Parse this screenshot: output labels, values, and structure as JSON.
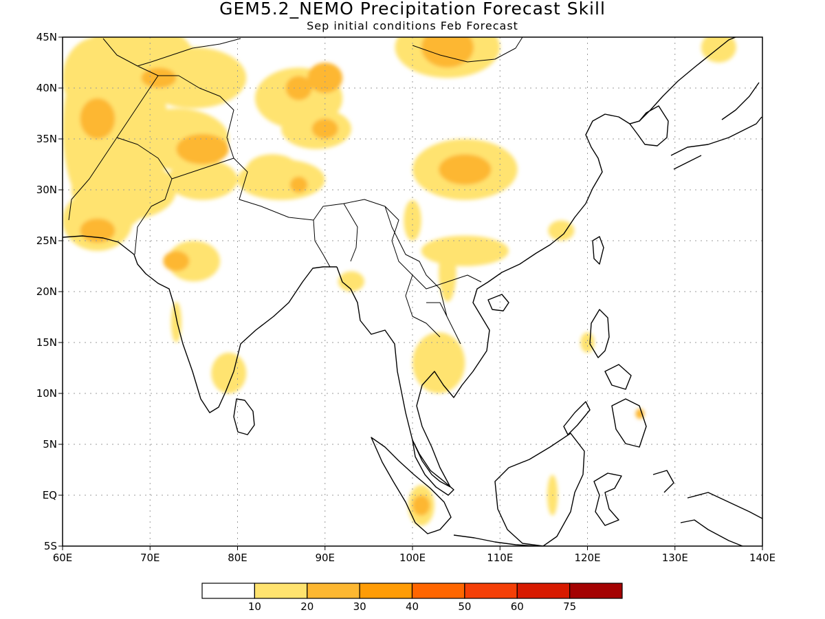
{
  "title": "GEM5.2_NEMO Precipitation Forecast Skill",
  "subtitle": "Sep initial conditions  Feb Forecast",
  "map": {
    "lon_range": [
      60,
      140
    ],
    "lat_range": [
      -5,
      45
    ],
    "lon_ticks": [
      {
        "value": 60,
        "label": "60E"
      },
      {
        "value": 70,
        "label": "70E"
      },
      {
        "value": 80,
        "label": "80E"
      },
      {
        "value": 90,
        "label": "90E"
      },
      {
        "value": 100,
        "label": "100E"
      },
      {
        "value": 110,
        "label": "110E"
      },
      {
        "value": 120,
        "label": "120E"
      },
      {
        "value": 130,
        "label": "130E"
      },
      {
        "value": 140,
        "label": "140E"
      }
    ],
    "lat_ticks": [
      {
        "value": 45,
        "label": "45N"
      },
      {
        "value": 40,
        "label": "40N"
      },
      {
        "value": 35,
        "label": "35N"
      },
      {
        "value": 30,
        "label": "30N"
      },
      {
        "value": 25,
        "label": "25N"
      },
      {
        "value": 20,
        "label": "20N"
      },
      {
        "value": 15,
        "label": "15N"
      },
      {
        "value": 10,
        "label": "10N"
      },
      {
        "value": 5,
        "label": "5N"
      },
      {
        "value": 0,
        "label": "EQ"
      },
      {
        "value": -5,
        "label": "5S"
      }
    ],
    "grid": true,
    "coastline_color": "#000000",
    "shading": [
      {
        "lon": 66,
        "lat": 36,
        "rx": 6,
        "ry": 10,
        "level": 1
      },
      {
        "lon": 64,
        "lat": 41,
        "rx": 4,
        "ry": 4,
        "level": 1
      },
      {
        "lon": 70,
        "lat": 43,
        "rx": 5,
        "ry": 3,
        "level": 1
      },
      {
        "lon": 75,
        "lat": 41,
        "rx": 6,
        "ry": 3,
        "level": 1
      },
      {
        "lon": 73,
        "lat": 35,
        "rx": 6,
        "ry": 3,
        "level": 1
      },
      {
        "lon": 67,
        "lat": 30,
        "rx": 6,
        "ry": 3,
        "level": 1
      },
      {
        "lon": 64,
        "lat": 27,
        "rx": 4,
        "ry": 3,
        "level": 1
      },
      {
        "lon": 76,
        "lat": 31,
        "rx": 4,
        "ry": 2,
        "level": 1
      },
      {
        "lon": 87,
        "lat": 39,
        "rx": 5,
        "ry": 3,
        "level": 1
      },
      {
        "lon": 89,
        "lat": 36,
        "rx": 4,
        "ry": 2,
        "level": 1
      },
      {
        "lon": 84,
        "lat": 32,
        "rx": 3,
        "ry": 1.5,
        "level": 1
      },
      {
        "lon": 85,
        "lat": 31,
        "rx": 5,
        "ry": 2,
        "level": 1
      },
      {
        "lon": 104,
        "lat": 44,
        "rx": 6,
        "ry": 3,
        "level": 1
      },
      {
        "lon": 106,
        "lat": 32,
        "rx": 6,
        "ry": 3,
        "level": 1
      },
      {
        "lon": 100,
        "lat": 27,
        "rx": 1,
        "ry": 2,
        "level": 1
      },
      {
        "lon": 106,
        "lat": 24,
        "rx": 5,
        "ry": 1.5,
        "level": 1
      },
      {
        "lon": 104,
        "lat": 22,
        "rx": 1,
        "ry": 3,
        "level": 1
      },
      {
        "lon": 117,
        "lat": 26,
        "rx": 1.5,
        "ry": 1,
        "level": 1
      },
      {
        "lon": 75,
        "lat": 23,
        "rx": 3,
        "ry": 2,
        "level": 1
      },
      {
        "lon": 79,
        "lat": 12,
        "rx": 2,
        "ry": 2,
        "level": 1
      },
      {
        "lon": 73,
        "lat": 17,
        "rx": 0.6,
        "ry": 2,
        "level": 1
      },
      {
        "lon": 93,
        "lat": 21,
        "rx": 1.5,
        "ry": 1,
        "level": 1
      },
      {
        "lon": 103,
        "lat": 13,
        "rx": 3,
        "ry": 3,
        "level": 1
      },
      {
        "lon": 120,
        "lat": 15,
        "rx": 0.8,
        "ry": 1,
        "level": 1
      },
      {
        "lon": 116,
        "lat": 0,
        "rx": 0.6,
        "ry": 2,
        "level": 1
      },
      {
        "lon": 101,
        "lat": -1,
        "rx": 1.5,
        "ry": 2,
        "level": 1
      },
      {
        "lon": 135,
        "lat": 44,
        "rx": 2,
        "ry": 1.5,
        "level": 1
      },
      {
        "lon": 64,
        "lat": 37,
        "rx": 2,
        "ry": 2,
        "level": 2
      },
      {
        "lon": 71,
        "lat": 41,
        "rx": 2,
        "ry": 1,
        "level": 2
      },
      {
        "lon": 76,
        "lat": 34,
        "rx": 3,
        "ry": 1.5,
        "level": 2
      },
      {
        "lon": 64,
        "lat": 26,
        "rx": 2,
        "ry": 1.2,
        "level": 2
      },
      {
        "lon": 87,
        "lat": 40,
        "rx": 1.5,
        "ry": 1.2,
        "level": 2
      },
      {
        "lon": 90,
        "lat": 41,
        "rx": 2,
        "ry": 1.5,
        "level": 2
      },
      {
        "lon": 90,
        "lat": 36,
        "rx": 1.5,
        "ry": 1,
        "level": 2
      },
      {
        "lon": 87,
        "lat": 30.5,
        "rx": 1,
        "ry": 0.8,
        "level": 2
      },
      {
        "lon": 104,
        "lat": 44,
        "rx": 3,
        "ry": 2,
        "level": 2
      },
      {
        "lon": 106,
        "lat": 32,
        "rx": 3,
        "ry": 1.5,
        "level": 2
      },
      {
        "lon": 73,
        "lat": 23,
        "rx": 1.5,
        "ry": 1,
        "level": 2
      },
      {
        "lon": 101,
        "lat": -1,
        "rx": 1,
        "ry": 1,
        "level": 2
      },
      {
        "lon": 126,
        "lat": 8,
        "rx": 0.5,
        "ry": 0.5,
        "level": 2
      }
    ],
    "level_colors": [
      "#ffffff",
      "#ffe36f",
      "#fdb731",
      "#ff9c06",
      "#ff6600",
      "#f43f07",
      "#d71a00",
      "#a40202"
    ]
  },
  "colorbar": {
    "colors": [
      "#ffffff",
      "#ffe36f",
      "#fdb731",
      "#ff9c06",
      "#ff6600",
      "#f43f07",
      "#d71a00",
      "#a40202"
    ],
    "labels": [
      "10",
      "20",
      "30",
      "40",
      "50",
      "60",
      "75"
    ]
  }
}
